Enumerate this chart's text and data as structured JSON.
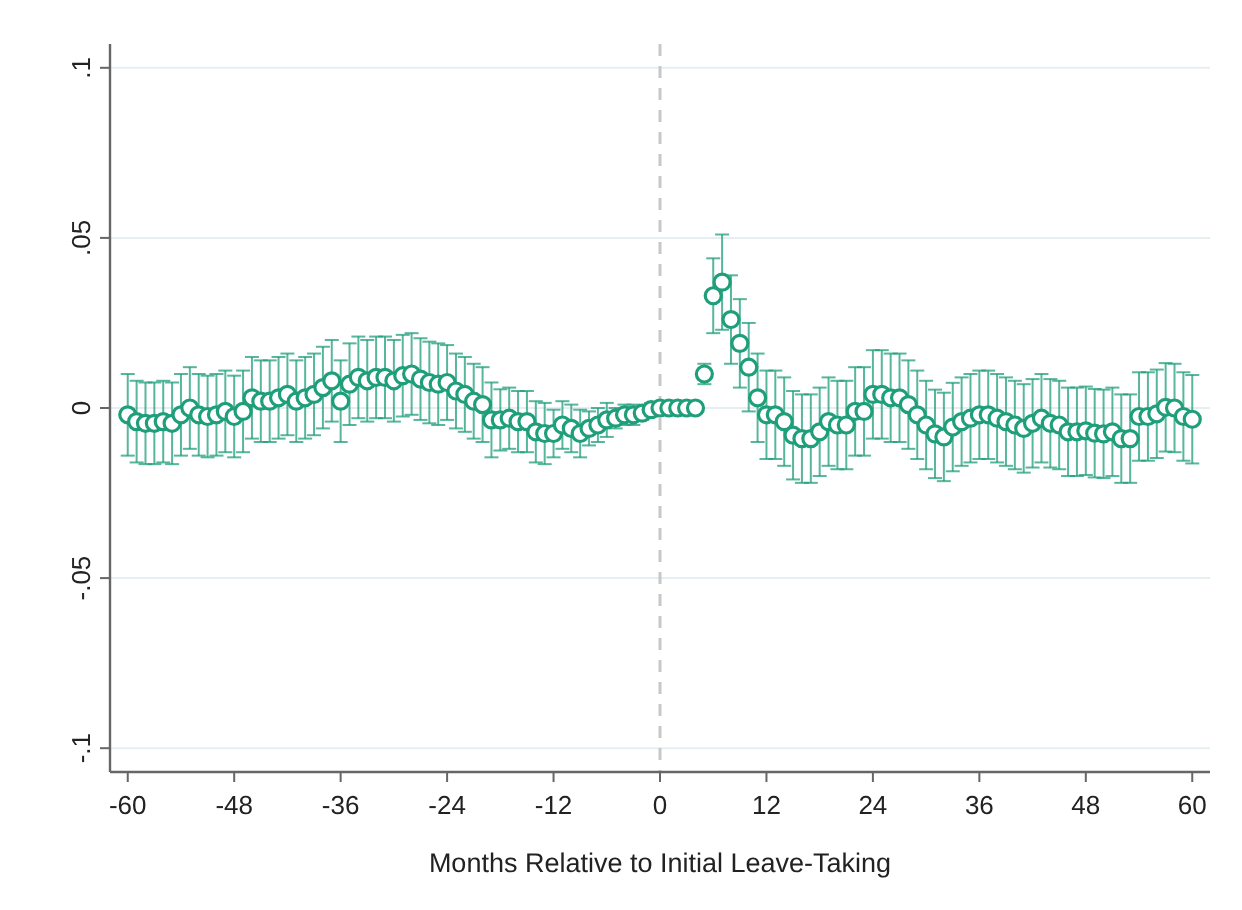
{
  "chart_data": {
    "type": "scatter",
    "xlabel": "Months Relative to Initial Leave-Taking",
    "marker": "circle",
    "grid": "y",
    "xlim": [
      -62,
      62
    ],
    "xticks": [
      -60,
      -48,
      -36,
      -24,
      -12,
      0,
      12,
      24,
      36,
      48,
      60
    ],
    "ylim": [
      -0.107,
      0.107
    ],
    "yticks": [
      {
        "value": -0.1,
        "label": "-.1"
      },
      {
        "value": -0.05,
        "label": "-.05"
      },
      0,
      {
        "value": 0.05,
        "label": ".05"
      },
      {
        "value": 0.1,
        "label": ".1"
      }
    ],
    "ref_lines": [
      {
        "axis": "x",
        "value": 0,
        "color": "#c8c8c8",
        "line_style": "dashed"
      }
    ],
    "series": [
      {
        "color": "#1f9e7a",
        "x": [
          -60,
          -59,
          -58,
          -57,
          -56,
          -55,
          -54,
          -53,
          -52,
          -51,
          -50,
          -49,
          -48,
          -47,
          -46,
          -45,
          -44,
          -43,
          -42,
          -41,
          -40,
          -39,
          -38,
          -37,
          -36,
          -35,
          -34,
          -33,
          -32,
          -31,
          -30,
          -29,
          -28,
          -27,
          -26,
          -25,
          -24,
          -23,
          -22,
          -21,
          -20,
          -19,
          -18,
          -17,
          -16,
          -15,
          -14,
          -13,
          -12,
          -11,
          -10,
          -9,
          -8,
          -7,
          -6,
          -5,
          -4,
          -3,
          -2,
          -1,
          0,
          1,
          2,
          3,
          4,
          5,
          6,
          7,
          8,
          9,
          10,
          11,
          12,
          13,
          14,
          15,
          16,
          17,
          18,
          19,
          20,
          21,
          22,
          23,
          24,
          25,
          26,
          27,
          28,
          29,
          30,
          31,
          32,
          33,
          34,
          35,
          36,
          37,
          38,
          39,
          40,
          41,
          42,
          43,
          44,
          45,
          46,
          47,
          48,
          49,
          50,
          51,
          52,
          53,
          54,
          55,
          56,
          57,
          58,
          59,
          60
        ],
        "values": [
          -0.002,
          -0.004,
          -0.0045,
          -0.0045,
          -0.004,
          -0.0045,
          -0.002,
          0,
          -0.002,
          -0.0025,
          -0.002,
          -0.001,
          -0.0025,
          -0.001,
          0.003,
          0.002,
          0.002,
          0.003,
          0.004,
          0.002,
          0.003,
          0.004,
          0.006,
          0.008,
          0.002,
          0.007,
          0.009,
          0.008,
          0.009,
          0.009,
          0.008,
          0.0095,
          0.01,
          0.0085,
          0.0075,
          0.007,
          0.0075,
          0.005,
          0.004,
          0.002,
          0.001,
          -0.0035,
          -0.0035,
          -0.003,
          -0.004,
          -0.004,
          -0.007,
          -0.0075,
          -0.0075,
          -0.005,
          -0.006,
          -0.0075,
          -0.006,
          -0.005,
          -0.0035,
          -0.003,
          -0.002,
          -0.002,
          -0.0015,
          -0.0005,
          0,
          0,
          0,
          0,
          0,
          0.01,
          0.033,
          0.037,
          0.026,
          0.019,
          0.012,
          0.003,
          -0.002,
          -0.002,
          -0.004,
          -0.008,
          -0.009,
          -0.009,
          -0.007,
          -0.004,
          -0.005,
          -0.005,
          -0.001,
          -0.001,
          0.004,
          0.004,
          0.003,
          0.003,
          0.001,
          -0.002,
          -0.005,
          -0.0076,
          -0.0085,
          -0.0056,
          -0.004,
          -0.003,
          -0.002,
          -0.002,
          -0.003,
          -0.004,
          -0.005,
          -0.006,
          -0.0045,
          -0.003,
          -0.0045,
          -0.005,
          -0.007,
          -0.007,
          -0.0067,
          -0.0074,
          -0.0076,
          -0.007,
          -0.009,
          -0.009,
          -0.0025,
          -0.0025,
          -0.0017,
          0.0002,
          0,
          -0.0025,
          -0.0033
        ],
        "errors": [
          0.012,
          0.012,
          0.012,
          0.012,
          0.012,
          0.012,
          0.012,
          0.012,
          0.012,
          0.012,
          0.012,
          0.012,
          0.012,
          0.012,
          0.012,
          0.012,
          0.012,
          0.012,
          0.012,
          0.012,
          0.012,
          0.012,
          0.012,
          0.012,
          0.012,
          0.012,
          0.012,
          0.012,
          0.012,
          0.012,
          0.012,
          0.012,
          0.012,
          0.012,
          0.012,
          0.012,
          0.011,
          0.011,
          0.011,
          0.011,
          0.011,
          0.011,
          0.009,
          0.009,
          0.009,
          0.009,
          0.009,
          0.009,
          0.007,
          0.007,
          0.007,
          0.007,
          0.005,
          0.005,
          0.005,
          0.003,
          0.003,
          0.003,
          0.002,
          0.002,
          null,
          null,
          null,
          null,
          null,
          0.003,
          0.011,
          0.014,
          0.013,
          0.013,
          0.013,
          0.013,
          0.013,
          0.013,
          0.013,
          0.013,
          0.013,
          0.013,
          0.013,
          0.013,
          0.013,
          0.013,
          0.013,
          0.013,
          0.013,
          0.013,
          0.013,
          0.013,
          0.013,
          0.013,
          0.013,
          0.013,
          0.013,
          0.013,
          0.013,
          0.013,
          0.013,
          0.013,
          0.013,
          0.013,
          0.013,
          0.013,
          0.013,
          0.013,
          0.013,
          0.013,
          0.013,
          0.013,
          0.013,
          0.013,
          0.013,
          0.013,
          0.013,
          0.013,
          0.013,
          0.013,
          0.013,
          0.013,
          0.013,
          0.013,
          0.013
        ]
      }
    ]
  }
}
